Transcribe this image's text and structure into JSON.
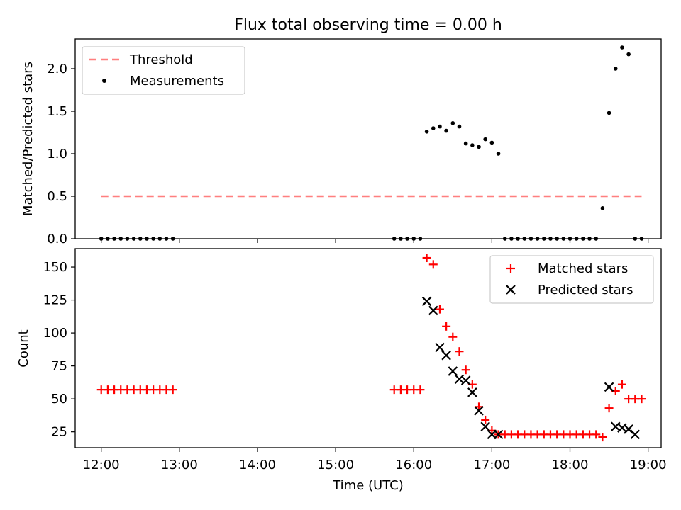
{
  "title": "Flux total observing time = 0.00 h",
  "colors": {
    "threshold": "#ff7f7f",
    "measurement": "#000000",
    "matched": "#ff0000",
    "predicted": "#000000"
  },
  "chart_data": [
    {
      "type": "scatter",
      "ylabel": "Matched/Predicted stars",
      "ylim": [
        0,
        2.35
      ],
      "yticks": [
        0,
        0.5,
        1.0,
        1.5,
        2.0
      ],
      "ytick_labels": [
        "0.0",
        "0.5",
        "1.0",
        "1.5",
        "2.0"
      ],
      "xlim": [
        "11:40",
        "19:10"
      ],
      "legend_placement": "top-left",
      "legend": [
        {
          "label": "Threshold",
          "marker": "dashed-line"
        },
        {
          "label": "Measurements",
          "marker": "dot"
        }
      ],
      "threshold": {
        "name": "Threshold",
        "y": 0.5,
        "x_start": "12:00",
        "x_end": "18:55"
      },
      "measurements": {
        "name": "Measurements",
        "x": [
          "12:00",
          "12:05",
          "12:10",
          "12:15",
          "12:20",
          "12:25",
          "12:30",
          "12:35",
          "12:40",
          "12:45",
          "12:50",
          "12:55",
          "15:45",
          "15:50",
          "15:55",
          "16:00",
          "16:05",
          "16:10",
          "16:15",
          "16:20",
          "16:25",
          "16:30",
          "16:35",
          "16:40",
          "16:45",
          "16:50",
          "16:55",
          "17:00",
          "17:05",
          "17:10",
          "17:15",
          "17:20",
          "17:25",
          "17:30",
          "17:35",
          "17:40",
          "17:45",
          "17:50",
          "17:55",
          "18:00",
          "18:05",
          "18:10",
          "18:15",
          "18:20",
          "18:25",
          "18:30",
          "18:35",
          "18:40",
          "18:45",
          "18:50",
          "18:55"
        ],
        "y": [
          0,
          0,
          0,
          0,
          0,
          0,
          0,
          0,
          0,
          0,
          0,
          0,
          0,
          0,
          0,
          0,
          0,
          1.26,
          1.3,
          1.32,
          1.27,
          1.36,
          1.32,
          1.12,
          1.1,
          1.08,
          1.17,
          1.13,
          1.0,
          0,
          0,
          0,
          0,
          0,
          0,
          0,
          0,
          0,
          0,
          0,
          0,
          0,
          0,
          0,
          0.36,
          1.48,
          2.0,
          2.25,
          2.17,
          0,
          0
        ]
      }
    },
    {
      "type": "scatter",
      "ylabel": "Count",
      "xlabel": "Time (UTC)",
      "ylim": [
        13,
        164
      ],
      "yticks": [
        25,
        50,
        75,
        100,
        125,
        150
      ],
      "ytick_labels": [
        "25",
        "50",
        "75",
        "100",
        "125",
        "150"
      ],
      "xlim": [
        "11:40",
        "19:10"
      ],
      "xticks": [
        "12:00",
        "13:00",
        "14:00",
        "15:00",
        "16:00",
        "17:00",
        "18:00",
        "19:00"
      ],
      "legend_placement": "top-right",
      "legend": [
        {
          "label": "Matched stars",
          "marker": "plus"
        },
        {
          "label": "Predicted stars",
          "marker": "x"
        }
      ],
      "series": [
        {
          "name": "Matched stars",
          "x": [
            "12:00",
            "12:05",
            "12:10",
            "12:15",
            "12:20",
            "12:25",
            "12:30",
            "12:35",
            "12:40",
            "12:45",
            "12:50",
            "12:55",
            "15:45",
            "15:50",
            "15:55",
            "16:00",
            "16:05",
            "16:10",
            "16:15",
            "16:20",
            "16:25",
            "16:30",
            "16:35",
            "16:40",
            "16:45",
            "16:50",
            "16:55",
            "17:00",
            "17:05",
            "17:10",
            "17:15",
            "17:20",
            "17:25",
            "17:30",
            "17:35",
            "17:40",
            "17:45",
            "17:50",
            "17:55",
            "18:00",
            "18:05",
            "18:10",
            "18:15",
            "18:20",
            "18:25",
            "18:30",
            "18:35",
            "18:40",
            "18:45",
            "18:50",
            "18:55"
          ],
          "y": [
            57,
            57,
            57,
            57,
            57,
            57,
            57,
            57,
            57,
            57,
            57,
            57,
            57,
            57,
            57,
            57,
            57,
            157,
            152,
            118,
            105,
            97,
            86,
            72,
            61,
            44,
            34,
            26,
            23,
            23,
            23,
            23,
            23,
            23,
            23,
            23,
            23,
            23,
            23,
            23,
            23,
            23,
            23,
            23,
            21,
            43,
            56,
            61,
            50,
            50,
            50
          ]
        },
        {
          "name": "Predicted stars",
          "x": [
            "16:10",
            "16:15",
            "16:20",
            "16:25",
            "16:30",
            "16:35",
            "16:40",
            "16:45",
            "16:50",
            "16:55",
            "17:00",
            "17:05",
            "18:30",
            "18:35",
            "18:40",
            "18:45",
            "18:50"
          ],
          "y": [
            124,
            117,
            89,
            83,
            71,
            65,
            64,
            55,
            41,
            29,
            23,
            23,
            59,
            29,
            28,
            27,
            23
          ]
        }
      ]
    }
  ]
}
